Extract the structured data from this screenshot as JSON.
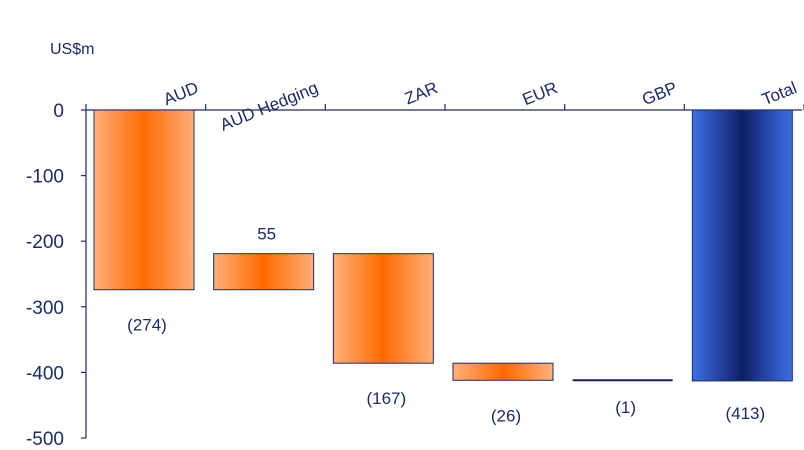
{
  "chart_data": {
    "type": "bar",
    "subtype": "waterfall",
    "ylabel": "US$m",
    "ylim": [
      -500,
      0
    ],
    "y_ticks": [
      0,
      -100,
      -200,
      -300,
      -400,
      -500
    ],
    "grid": false,
    "legend": "none",
    "categories": [
      "AUD",
      "AUD Hedging",
      "ZAR",
      "EUR",
      "GBP",
      "Total"
    ],
    "values": [
      -274,
      55,
      -167,
      -26,
      -1,
      -413
    ],
    "value_labels": [
      "(274)",
      "55",
      "(167)",
      "(26)",
      "(1)",
      "(413)"
    ],
    "colors": {
      "change_edge": "#ffb07a",
      "change_center": "#ff6a00",
      "total_edge": "#3f6fe6",
      "total_center": "#0e1f66",
      "outline": "#1b2a6b",
      "axis": "#1b2a6b"
    }
  }
}
